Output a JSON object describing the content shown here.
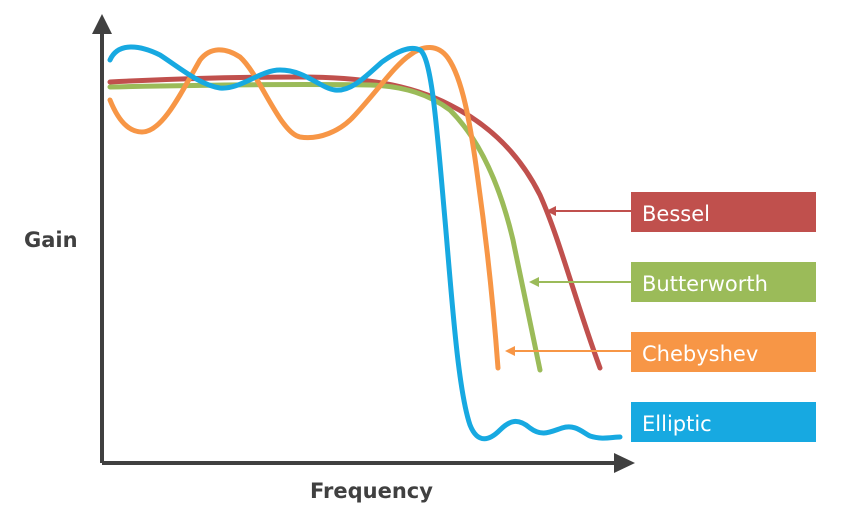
{
  "axes": {
    "y_label": "Gain",
    "x_label": "Frequency"
  },
  "legend": [
    {
      "key": "bessel",
      "label": "Bessel",
      "color": "#c0504d"
    },
    {
      "key": "butterworth",
      "label": "Butterworth",
      "color": "#9bbb59"
    },
    {
      "key": "chebyshev",
      "label": "Chebyshev",
      "color": "#f79646"
    },
    {
      "key": "elliptic",
      "label": "Elliptic",
      "color": "#17a9e1"
    }
  ],
  "colors": {
    "axis": "#404040",
    "background": "#ffffff"
  }
}
